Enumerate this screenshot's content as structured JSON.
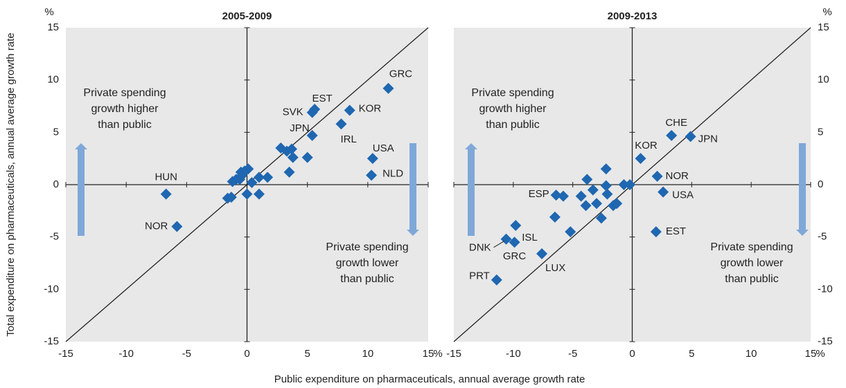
{
  "y_axis_label": "Total expenditure on pharmaceuticals, annual average growth rate",
  "x_axis_label": "Public expenditure on pharmaceuticals, annual average growth rate",
  "chart_data": [
    {
      "type": "scatter",
      "title": "2005-2009",
      "color": "#1f67b1",
      "x_unit": "%",
      "y_unit": "%",
      "xlim": [
        -15,
        15
      ],
      "ylim": [
        -15,
        15
      ],
      "xticks": [
        -15,
        -10,
        -5,
        0,
        5,
        10,
        15
      ],
      "yticks": [
        -15,
        -10,
        -5,
        0,
        5,
        10,
        15
      ],
      "annotations": [
        [
          "Private spending",
          "growth higher",
          "than public"
        ],
        [
          "Private spending",
          "growth lower",
          "than public"
        ]
      ],
      "x": [
        -6.7,
        -5.8,
        11.7,
        5.6,
        5.4,
        8.5,
        5.4,
        7.8,
        10.4,
        10.3,
        2.8,
        3.3,
        3.7,
        3.8,
        5.0,
        3.5,
        1.7,
        1.0,
        0.4,
        0.1,
        -0.2,
        -0.5,
        -0.6,
        -0.9,
        -1.2,
        0.0,
        1.0,
        -1.3,
        -1.6,
        -0.4
      ],
      "y": [
        -0.9,
        -4.0,
        9.2,
        7.2,
        6.9,
        7.1,
        4.7,
        5.8,
        2.5,
        0.9,
        3.5,
        3.2,
        3.4,
        2.6,
        2.6,
        1.2,
        0.7,
        0.7,
        0.2,
        1.5,
        1.3,
        1.2,
        0.5,
        0.5,
        0.3,
        -0.9,
        -0.9,
        -1.2,
        -1.3,
        0.9
      ],
      "labels": [
        "HUN",
        "NOR",
        "GRC",
        "EST",
        "SVK",
        "KOR",
        "JPN",
        "IRL",
        "USA",
        "NLD",
        null,
        null,
        null,
        null,
        null,
        null,
        null,
        null,
        null,
        null,
        null,
        null,
        null,
        null,
        null,
        null,
        null,
        null,
        null,
        null
      ]
    },
    {
      "type": "scatter",
      "title": "2009-2013",
      "color": "#1f67b1",
      "x_unit": "%",
      "y_unit": "%",
      "xlim": [
        -15,
        15
      ],
      "ylim": [
        -15,
        15
      ],
      "xticks": [
        -15,
        -10,
        -5,
        0,
        5,
        10,
        15
      ],
      "yticks": [
        -15,
        -10,
        -5,
        0,
        5,
        10,
        15
      ],
      "annotations": [
        [
          "Private spending",
          "growth higher",
          "than public"
        ],
        [
          "Private spending",
          "growth lower",
          "than public"
        ]
      ],
      "x": [
        3.3,
        4.9,
        0.7,
        2.1,
        2.6,
        2.0,
        -6.4,
        -9.8,
        -10.6,
        -9.9,
        -7.6,
        -11.4,
        -5.8,
        -6.5,
        -5.2,
        -4.3,
        -3.9,
        -3.8,
        -3.3,
        -3.0,
        -2.6,
        -2.2,
        -2.2,
        -2.1,
        -1.6,
        -1.3,
        -0.7,
        -0.2
      ],
      "y": [
        4.7,
        4.6,
        2.5,
        0.8,
        -0.7,
        -4.5,
        -1.0,
        -3.9,
        -5.2,
        -5.5,
        -6.6,
        -9.1,
        -1.1,
        -3.1,
        -4.5,
        -1.1,
        -2.0,
        0.5,
        -0.5,
        -1.8,
        -3.2,
        1.5,
        -0.1,
        -0.9,
        -2.0,
        -1.8,
        0.0,
        0.0
      ],
      "labels": [
        "CHE",
        "JPN",
        "KOR",
        "NOR",
        "USA",
        "EST",
        "ESP",
        "ISL",
        "DNK",
        "GRC",
        "LUX",
        "PRT",
        null,
        null,
        null,
        null,
        null,
        null,
        null,
        null,
        null,
        null,
        null,
        null,
        null,
        null,
        null,
        null
      ]
    }
  ]
}
